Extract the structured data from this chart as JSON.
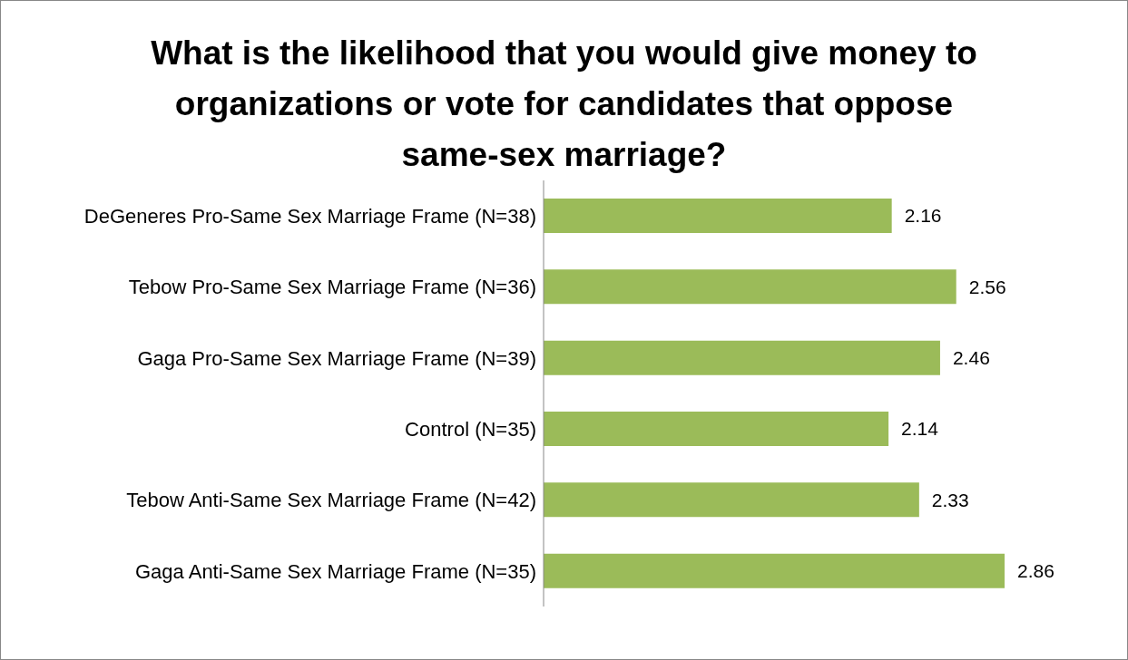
{
  "chart_data": {
    "type": "bar",
    "orientation": "horizontal",
    "data_labels": true,
    "title": "What is the likelihood that you would give money to organizations or vote for candidates that oppose same-sex marriage?",
    "categories": [
      "DeGeneres Pro-Same Sex Marriage Frame (N=38)",
      "Tebow Pro-Same Sex Marriage Frame (N=36)",
      "Gaga Pro-Same Sex Marriage Frame (N=39)",
      "Control (N=35)",
      "Tebow Anti-Same Sex Marriage Frame (N=42)",
      "Gaga Anti-Same Sex Marriage Frame (N=35)"
    ],
    "values": [
      2.16,
      2.56,
      2.46,
      2.14,
      2.33,
      2.86
    ],
    "color": "#9bbb59",
    "grid": false,
    "legend": false
  }
}
